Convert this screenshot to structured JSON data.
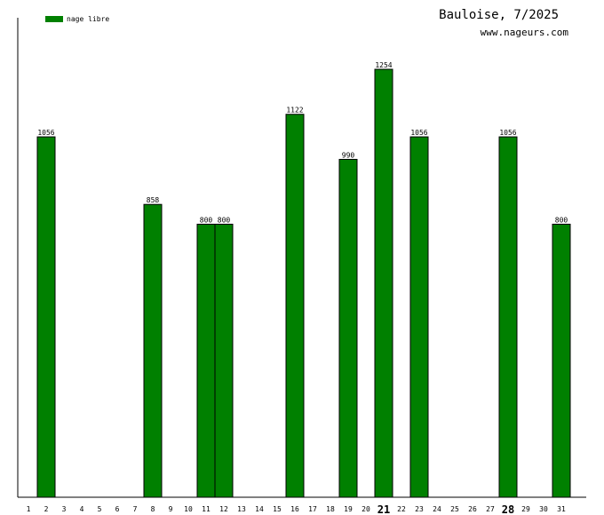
{
  "header": {
    "title": "Bauloise, 7/2025",
    "site": "www.nageurs.com"
  },
  "colors": {
    "bar": "#008000",
    "bar_stroke": "#000000",
    "axis": "#000000"
  },
  "chart_data": {
    "type": "bar",
    "title": "Bauloise, 7/2025",
    "xlabel": "",
    "ylabel": "",
    "categories": [
      "1",
      "2",
      "3",
      "4",
      "5",
      "6",
      "7",
      "8",
      "9",
      "10",
      "11",
      "12",
      "13",
      "14",
      "15",
      "16",
      "17",
      "18",
      "19",
      "20",
      "21",
      "22",
      "23",
      "24",
      "25",
      "26",
      "27",
      "28",
      "29",
      "30",
      "31"
    ],
    "highlighted_ticks": [
      "21",
      "28"
    ],
    "series": [
      {
        "name": "nage libre",
        "values": [
          0,
          1056,
          0,
          0,
          0,
          0,
          0,
          858,
          0,
          0,
          800,
          800,
          0,
          0,
          0,
          1122,
          0,
          0,
          990,
          0,
          1254,
          0,
          1056,
          0,
          0,
          0,
          0,
          1056,
          0,
          0,
          800
        ]
      }
    ],
    "ylim": [
      0,
      1254
    ],
    "grid": false,
    "legend_position": "top-left"
  }
}
